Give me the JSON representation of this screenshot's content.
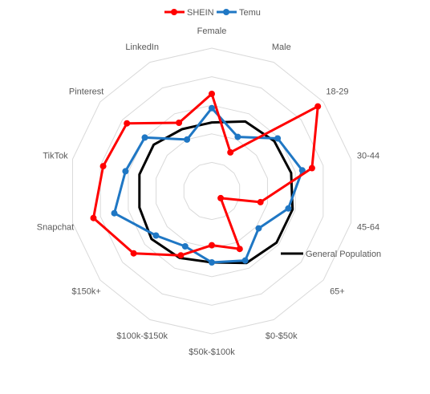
{
  "chart_data": {
    "type": "radar",
    "categories": [
      "Female",
      "Male",
      "18-29",
      "30-44",
      "45-64",
      "65+",
      "$0-$50k",
      "$50k-$100k",
      "$100k-$150k",
      "$150k+",
      "Snapchat",
      "TikTok",
      "Pinterest",
      "LinkedIn"
    ],
    "rlim": [
      0,
      10
    ],
    "gridlines": true,
    "series": [
      {
        "name": "SHEIN",
        "color": "#ff0000",
        "markers": true,
        "values": [
          6.8,
          3.0,
          9.5,
          7.2,
          3.5,
          0.8,
          4.5,
          3.8,
          5.0,
          7.0,
          8.5,
          7.8,
          7.6,
          5.3
        ]
      },
      {
        "name": "Temu",
        "color": "#1f77c4",
        "markers": true,
        "values": [
          5.8,
          4.2,
          5.9,
          6.5,
          5.5,
          4.2,
          5.4,
          5.0,
          4.3,
          5.0,
          7.0,
          6.2,
          6.0,
          4.0
        ]
      },
      {
        "name": "General Population",
        "color": "#000000",
        "markers": false,
        "values": [
          4.8,
          5.4,
          5.6,
          5.7,
          5.8,
          5.8,
          5.6,
          5.0,
          5.2,
          5.4,
          5.2,
          5.2,
          5.2,
          4.8
        ]
      }
    ],
    "legend": {
      "top": [
        "SHEIN",
        "Temu"
      ],
      "inline": "General Population"
    }
  }
}
